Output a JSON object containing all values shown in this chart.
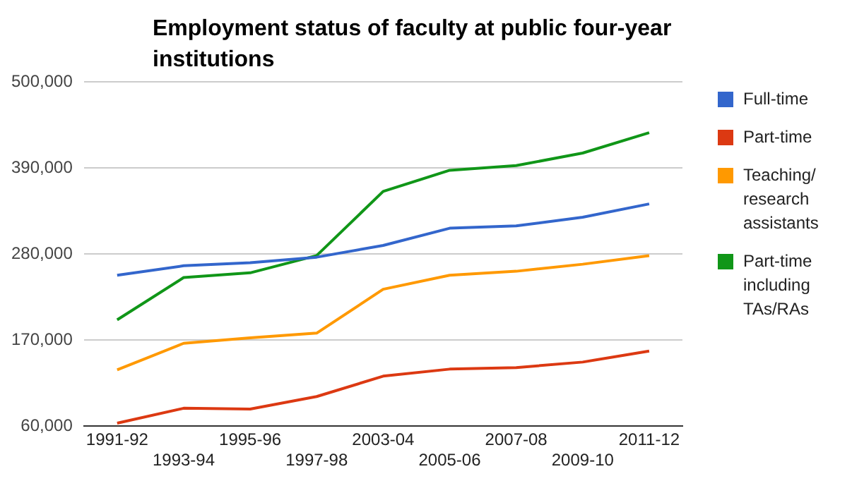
{
  "chart_data": {
    "type": "line",
    "title": "Employment status of faculty at public four-year institutions",
    "categories": [
      "1991-92",
      "1993-94",
      "1995-96",
      "1997-98",
      "2003-04",
      "2005-06",
      "2007-08",
      "2009-10",
      "2011-12"
    ],
    "series": [
      {
        "name": "Full-time",
        "color": "#3366cc",
        "values": [
          253000,
          265000,
          269000,
          276000,
          291000,
          313000,
          316000,
          327000,
          344000
        ]
      },
      {
        "name": "Part-time",
        "color": "#dc3912",
        "values": [
          64000,
          83000,
          82000,
          98000,
          124000,
          133000,
          135000,
          142000,
          156000
        ]
      },
      {
        "name": "Teaching/ research assistants",
        "color": "#ff9900",
        "values": [
          132000,
          166000,
          173000,
          179000,
          235000,
          253000,
          258000,
          267000,
          278000
        ]
      },
      {
        "name": "Part-time including TAs/RAs",
        "color": "#109618",
        "values": [
          196000,
          250000,
          256000,
          278000,
          360000,
          387000,
          393000,
          409000,
          435000
        ]
      }
    ],
    "ylim": [
      60000,
      500000
    ],
    "yticks": [
      {
        "value": 60000,
        "label": "60,000"
      },
      {
        "value": 170000,
        "label": "170,000"
      },
      {
        "value": 280000,
        "label": "280,000"
      },
      {
        "value": 390000,
        "label": "390,000"
      },
      {
        "value": 500000,
        "label": "500,000"
      }
    ],
    "grid": "y",
    "legend": "right",
    "marker": "none",
    "line_style": "solid"
  }
}
